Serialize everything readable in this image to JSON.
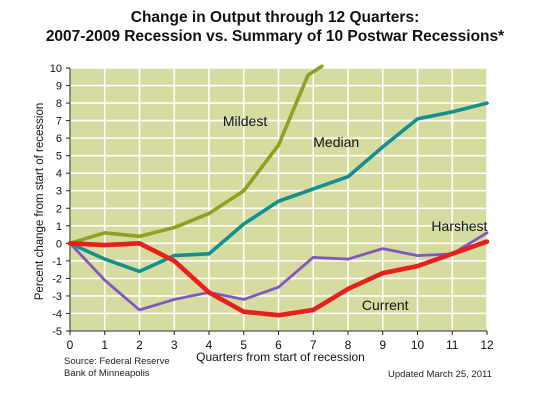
{
  "title_line1": "Change in Output through 12 Quarters:",
  "title_line2": "2007-2009 Recession vs. Summary of 10 Postwar Recessions*",
  "source_line1": "Source: Federal Reserve",
  "source_line2": "Bank of Minneapolis",
  "updated": "Updated March 25, 2011",
  "colors": {
    "plot_background": "#d6dca0",
    "gridline": "#ffffff",
    "axis": "#222222"
  },
  "chart_data": {
    "type": "line",
    "xlabel": "Quarters from start of recession",
    "ylabel": "Percent change from start of recession",
    "xlim": [
      0,
      12
    ],
    "ylim": [
      -5,
      10
    ],
    "x_ticks": [
      0,
      1,
      2,
      3,
      4,
      5,
      6,
      7,
      8,
      9,
      10,
      11,
      12
    ],
    "y_ticks": [
      -5,
      -4,
      -3,
      -2,
      -1,
      0,
      1,
      2,
      3,
      4,
      5,
      6,
      7,
      8,
      9,
      10
    ],
    "grid": true,
    "series": [
      {
        "name": "Mildest",
        "color": "#8fa122",
        "x": [
          0,
          1,
          2,
          3,
          4,
          5,
          6,
          6.85,
          7.25
        ],
        "values": [
          0,
          0.6,
          0.4,
          0.9,
          1.7,
          3.0,
          5.6,
          9.6,
          10.1
        ]
      },
      {
        "name": "Median",
        "color": "#138f8f",
        "x": [
          0,
          1,
          2,
          3,
          4,
          5,
          6,
          7,
          8,
          9,
          10,
          11,
          12
        ],
        "values": [
          0,
          -0.9,
          -1.6,
          -0.7,
          -0.6,
          1.1,
          2.4,
          3.1,
          3.8,
          5.5,
          7.1,
          7.5,
          8.0
        ]
      },
      {
        "name": "Harshest",
        "color": "#8058c0",
        "x": [
          0,
          1,
          2,
          3,
          4,
          5,
          6,
          7,
          8,
          9,
          10,
          11,
          12
        ],
        "values": [
          0,
          -2.1,
          -3.8,
          -3.2,
          -2.8,
          -3.2,
          -2.5,
          -0.8,
          -0.9,
          -0.3,
          -0.7,
          -0.6,
          0.6
        ]
      },
      {
        "name": "Current",
        "color": "#e8201c",
        "x": [
          0,
          1,
          2,
          3,
          4,
          5,
          6,
          7,
          8,
          9,
          10,
          11,
          12
        ],
        "values": [
          0,
          -0.1,
          0.0,
          -1.0,
          -2.8,
          -3.9,
          -4.1,
          -3.8,
          -2.6,
          -1.7,
          -1.3,
          -0.6,
          0.1
        ]
      }
    ]
  }
}
